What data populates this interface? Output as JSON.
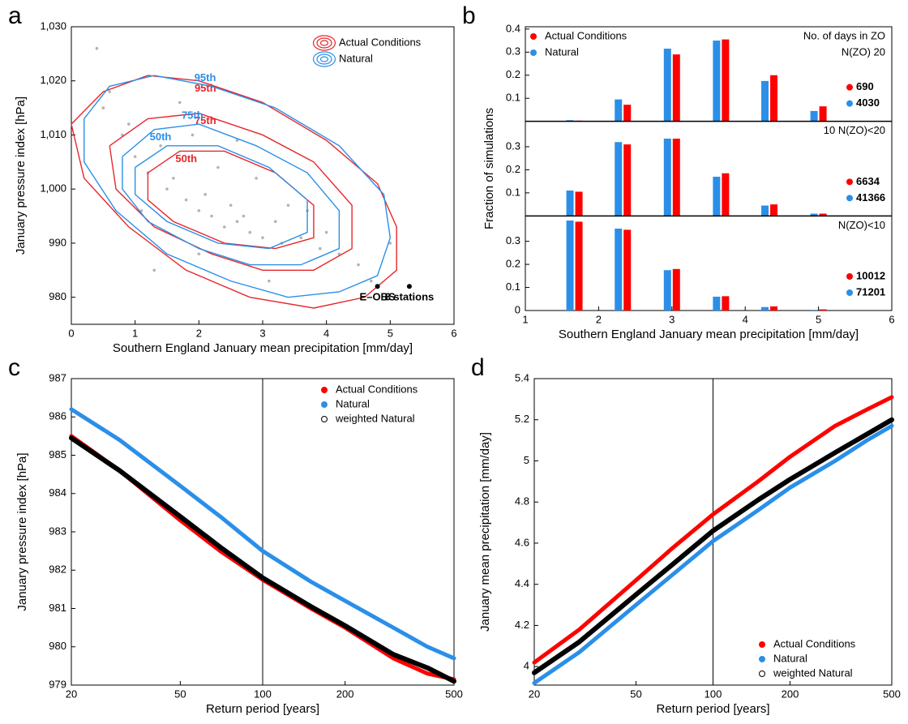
{
  "chart_data": [
    {
      "type": "scatter-contour",
      "panel_label": "a",
      "xlabel": "Southern England January mean precipitation [mm/day]",
      "ylabel": "January pressure index [hPa]",
      "xlim": [
        0,
        6
      ],
      "ylim": [
        975,
        1030
      ],
      "xticks": [
        0,
        1,
        2,
        3,
        4,
        5,
        6
      ],
      "yticks": [
        980,
        990,
        {
          "value": 1000,
          "label": "1,000"
        },
        {
          "value": 1010,
          "label": "1,010"
        },
        {
          "value": 1020,
          "label": "1,020"
        },
        {
          "value": 1030,
          "label": "1,030"
        }
      ],
      "points": {
        "color": "#b3b3b3",
        "x": [
          1.2,
          1.5,
          1.8,
          2.0,
          2.2,
          2.4,
          2.6,
          2.8,
          3.0,
          3.3,
          1.0,
          1.6,
          2.1,
          2.7,
          3.2,
          3.6,
          0.8,
          1.4,
          2.5,
          3.9,
          4.2,
          0.5,
          0.9,
          4.5,
          2.3,
          1.9,
          3.4,
          2.9,
          0.6,
          4.7,
          1.1,
          3.7,
          2.0,
          1.3,
          4.0,
          0.4,
          5.0,
          1.7,
          3.1,
          2.6
        ],
        "y": [
          1003,
          1000,
          998,
          996,
          995,
          993,
          994,
          992,
          991,
          990,
          1006,
          1002,
          999,
          995,
          994,
          991,
          1010,
          1008,
          997,
          989,
          988,
          1015,
          1012,
          986,
          1004,
          1010,
          997,
          1002,
          1018,
          983,
          996,
          996,
          988,
          985,
          992,
          1026,
          990,
          1016,
          983,
          1009
        ]
      },
      "series": [
        {
          "name": "Actual Conditions",
          "color": "#e8262b",
          "contours": [
            {
              "label": "95th",
              "x": [
                0.0,
                0.5,
                1.2,
                2.0,
                3.0,
                4.0,
                4.8,
                5.1,
                5.1,
                4.6,
                3.8,
                2.8,
                1.8,
                0.9,
                0.2,
                0.0
              ],
              "y": [
                1012,
                1018,
                1021,
                1020,
                1016,
                1009,
                1001,
                993,
                985,
                980,
                978,
                980,
                985,
                993,
                1002,
                1012
              ]
            },
            {
              "label": "75th",
              "x": [
                0.6,
                1.2,
                2.0,
                3.0,
                3.8,
                4.4,
                4.4,
                3.8,
                3.0,
                2.2,
                1.3,
                0.7,
                0.6
              ],
              "y": [
                1008,
                1013,
                1014,
                1010,
                1005,
                997,
                989,
                985,
                985,
                988,
                993,
                1000,
                1008
              ]
            },
            {
              "label": "50th",
              "x": [
                1.2,
                1.7,
                2.4,
                3.2,
                3.8,
                3.8,
                3.2,
                2.4,
                1.6,
                1.2,
                1.2
              ],
              "y": [
                1003,
                1007,
                1007,
                1003,
                997,
                991,
                989,
                990,
                994,
                998,
                1003
              ]
            }
          ]
        },
        {
          "name": "Natural",
          "color": "#2b8fe8",
          "contours": [
            {
              "label": "95th",
              "x": [
                0.2,
                0.6,
                1.3,
                2.2,
                3.2,
                4.2,
                4.9,
                5.0,
                4.8,
                4.2,
                3.4,
                2.5,
                1.5,
                0.7,
                0.2,
                0.2
              ],
              "y": [
                1013,
                1019,
                1021,
                1019,
                1015,
                1008,
                999,
                991,
                984,
                981,
                980,
                983,
                988,
                996,
                1005,
                1013
              ]
            },
            {
              "label": "75th",
              "x": [
                0.8,
                1.3,
                2.0,
                2.9,
                3.7,
                4.2,
                4.2,
                3.6,
                2.8,
                2.0,
                1.2,
                0.8,
                0.8
              ],
              "y": [
                1006,
                1011,
                1012,
                1008,
                1003,
                996,
                989,
                986,
                986,
                989,
                994,
                1000,
                1006
              ]
            },
            {
              "label": "50th",
              "x": [
                1.0,
                1.5,
                2.3,
                3.1,
                3.7,
                3.7,
                3.1,
                2.3,
                1.5,
                1.0,
                1.0
              ],
              "y": [
                1004,
                1008,
                1008,
                1004,
                998,
                992,
                989,
                990,
                994,
                999,
                1004
              ]
            }
          ]
        }
      ],
      "observations": [
        {
          "label": "E–OBS",
          "x": 4.8,
          "y": 982
        },
        {
          "label": "8 stations",
          "x": 5.3,
          "y": 982
        }
      ],
      "legend": "upper right"
    },
    {
      "type": "bar-panels",
      "panel_label": "b",
      "xlabel": "Southern England January mean precipitation [mm/day]",
      "ylabel": "Fraction of simulations",
      "xlim": [
        1,
        6
      ],
      "xticks": [
        1,
        2,
        3,
        4,
        5,
        6
      ],
      "x": [
        1.67,
        2.33,
        3.0,
        3.67,
        4.33,
        5.0
      ],
      "series": [
        {
          "name": "Actual Conditions",
          "color": "#ff0000"
        },
        {
          "name": "Natural",
          "color": "#2b8fe8"
        }
      ],
      "legend": "upper left",
      "panels": [
        {
          "annotation": [
            "No. of days in ZO",
            "N(ZO) 20"
          ],
          "ylim": [
            0,
            0.41
          ],
          "yticks": [
            0.1,
            0.2,
            0.3,
            0.4
          ],
          "series": [
            {
              "n": 690,
              "values": [
                0.003,
                0.072,
                0.29,
                0.355,
                0.2,
                0.065
              ]
            },
            {
              "n": 4030,
              "values": [
                0.005,
                0.095,
                0.315,
                0.35,
                0.175,
                0.045
              ]
            }
          ]
        },
        {
          "annotation": [
            "10 N(ZO)<20"
          ],
          "ylim": [
            0,
            0.41
          ],
          "yticks": [
            0.1,
            0.2,
            0.3
          ],
          "series": [
            {
              "n": 6634,
              "values": [
                0.105,
                0.31,
                0.335,
                0.185,
                0.05,
                0.01
              ]
            },
            {
              "n": 41366,
              "values": [
                0.11,
                0.32,
                0.335,
                0.17,
                0.045,
                0.01
              ]
            }
          ]
        },
        {
          "annotation": [
            "N(ZO)<10"
          ],
          "ylim": [
            0,
            0.41
          ],
          "yticks": [
            0,
            0.1,
            0.2,
            0.3
          ],
          "series": [
            {
              "n": 10012,
              "values": [
                0.385,
                0.35,
                0.18,
                0.062,
                0.018,
                0.005
              ]
            },
            {
              "n": 71201,
              "values": [
                0.39,
                0.355,
                0.175,
                0.06,
                0.015,
                0.003
              ]
            }
          ]
        }
      ]
    },
    {
      "type": "line",
      "panel_label": "c",
      "log_x": true,
      "xlabel": "Return period [years]",
      "ylabel": "January pressure index [hPa]",
      "xlim": [
        20,
        500
      ],
      "ylim": [
        979,
        987
      ],
      "xticks": [
        20,
        50,
        100,
        200,
        500
      ],
      "yticks": [
        979,
        980,
        981,
        982,
        983,
        984,
        985,
        986,
        987
      ],
      "vline": 100,
      "legend": "upper right",
      "x": [
        20,
        30,
        50,
        70,
        100,
        150,
        200,
        300,
        400,
        500
      ],
      "series": [
        {
          "name": "Actual Conditions",
          "color": "#ff0000",
          "marker": "filled",
          "values": [
            985.5,
            984.6,
            983.3,
            982.5,
            981.75,
            981.0,
            980.5,
            979.7,
            979.3,
            979.15
          ]
        },
        {
          "name": "Natural",
          "color": "#2b8fe8",
          "marker": "filled",
          "values": [
            986.2,
            985.4,
            984.2,
            983.4,
            982.5,
            981.7,
            981.2,
            980.5,
            980.0,
            979.7
          ]
        },
        {
          "name": "weighted Natural",
          "color": "#000000",
          "marker": "open",
          "values": [
            985.45,
            984.6,
            983.4,
            982.6,
            981.8,
            981.05,
            980.55,
            979.8,
            979.45,
            979.1
          ]
        }
      ]
    },
    {
      "type": "line",
      "panel_label": "d",
      "log_x": true,
      "xlabel": "Return period [years]",
      "ylabel": "January mean precipitation [mm/day]",
      "xlim": [
        20,
        500
      ],
      "ylim": [
        3.91,
        5.4
      ],
      "xticks": [
        20,
        50,
        100,
        200,
        500
      ],
      "yticks": [
        4,
        4.2,
        4.4,
        4.6,
        4.8,
        5,
        5.2,
        5.4
      ],
      "vline": 100,
      "legend": "lower right",
      "x": [
        20,
        30,
        50,
        70,
        100,
        150,
        200,
        300,
        400,
        500
      ],
      "series": [
        {
          "name": "Actual Conditions",
          "color": "#ff0000",
          "marker": "filled",
          "values": [
            4.02,
            4.18,
            4.42,
            4.58,
            4.74,
            4.9,
            5.02,
            5.17,
            5.25,
            5.31
          ]
        },
        {
          "name": "Natural",
          "color": "#2b8fe8",
          "marker": "filled",
          "values": [
            3.92,
            4.07,
            4.3,
            4.45,
            4.61,
            4.76,
            4.87,
            5.0,
            5.1,
            5.17
          ]
        },
        {
          "name": "weighted Natural",
          "color": "#000000",
          "marker": "open",
          "values": [
            3.97,
            4.12,
            4.35,
            4.5,
            4.66,
            4.81,
            4.91,
            5.04,
            5.13,
            5.2
          ]
        }
      ]
    }
  ]
}
